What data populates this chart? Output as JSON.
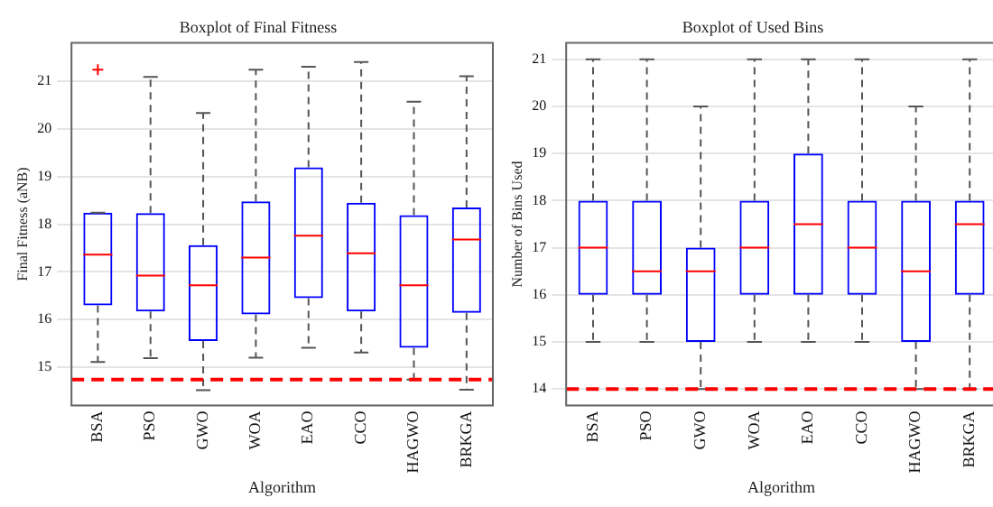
{
  "chart_data": [
    {
      "type": "box",
      "title": "Boxplot of Final Fitness",
      "xlabel": "Algorithm",
      "ylabel": "Final Fitness (aNB)",
      "categories": [
        "BSA",
        "PSO",
        "GWO",
        "WOA",
        "EAO",
        "CCO",
        "HAGWO",
        "BRKGA"
      ],
      "ylim": [
        14.2,
        21.8
      ],
      "yticks": [
        15,
        16,
        17,
        18,
        19,
        20,
        21
      ],
      "grid": "y",
      "series": [
        {
          "color": "#0000ff",
          "boxes": [
            {
              "low": 15.11,
              "q1": 16.3,
              "median": 17.36,
              "q3": 18.24,
              "high": 18.24,
              "outliers": [
                21.24
              ]
            },
            {
              "low": 15.19,
              "q1": 16.17,
              "median": 16.92,
              "q3": 18.23,
              "high": 21.09
            },
            {
              "low": 14.52,
              "q1": 15.55,
              "median": 16.72,
              "q3": 17.56,
              "high": 20.33
            },
            {
              "low": 15.2,
              "q1": 16.11,
              "median": 17.3,
              "q3": 18.48,
              "high": 21.24
            },
            {
              "low": 15.41,
              "q1": 16.45,
              "median": 17.76,
              "q3": 19.19,
              "high": 21.3
            },
            {
              "low": 15.31,
              "q1": 16.17,
              "median": 17.39,
              "q3": 18.45,
              "high": 21.4
            },
            {
              "low": 14.74,
              "q1": 15.41,
              "median": 16.72,
              "q3": 18.19,
              "high": 20.57
            },
            {
              "low": 14.53,
              "q1": 16.14,
              "median": 17.68,
              "q3": 18.35,
              "high": 21.1
            }
          ]
        }
      ],
      "ref_lines": [
        {
          "axis": "y",
          "value": 14.74,
          "color": "#ff0000",
          "line_style": "dashed"
        }
      ]
    },
    {
      "type": "box",
      "title": "Boxplot of Used Bins",
      "xlabel": "Algorithm",
      "ylabel": "Number of Bins Used",
      "categories": [
        "BSA",
        "PSO",
        "GWO",
        "WOA",
        "EAO",
        "CCO",
        "HAGWO",
        "BRKGA"
      ],
      "ylim": [
        13.65,
        21.35
      ],
      "yticks": [
        14,
        15,
        16,
        17,
        18,
        19,
        20,
        21
      ],
      "grid": "y",
      "series": [
        {
          "color": "#0000ff",
          "boxes": [
            {
              "low": 15,
              "q1": 16,
              "median": 17,
              "q3": 18,
              "high": 21
            },
            {
              "low": 15,
              "q1": 16,
              "median": 16.5,
              "q3": 18,
              "high": 21
            },
            {
              "low": 14,
              "q1": 15,
              "median": 16.5,
              "q3": 17,
              "high": 20
            },
            {
              "low": 15,
              "q1": 16,
              "median": 17,
              "q3": 18,
              "high": 21
            },
            {
              "low": 15,
              "q1": 16,
              "median": 17.5,
              "q3": 19,
              "high": 21
            },
            {
              "low": 15,
              "q1": 16,
              "median": 17,
              "q3": 18,
              "high": 21
            },
            {
              "low": 14,
              "q1": 15,
              "median": 16.5,
              "q3": 18,
              "high": 20
            },
            {
              "low": 14,
              "q1": 16,
              "median": 17.5,
              "q3": 18,
              "high": 21
            }
          ]
        }
      ],
      "ref_lines": [
        {
          "axis": "y",
          "value": 14,
          "color": "#ff0000",
          "line_style": "dashed"
        }
      ]
    }
  ]
}
